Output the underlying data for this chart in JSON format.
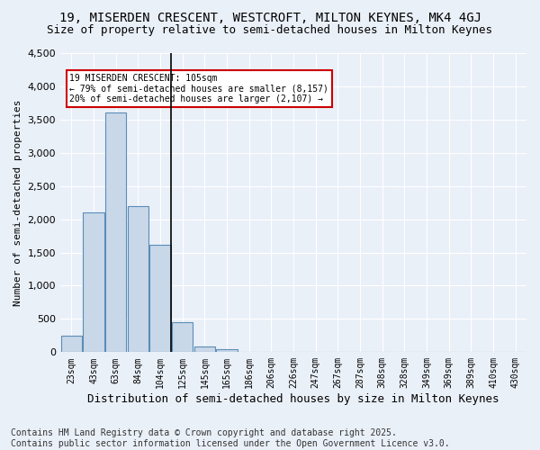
{
  "title1": "19, MISERDEN CRESCENT, WESTCROFT, MILTON KEYNES, MK4 4GJ",
  "title2": "Size of property relative to semi-detached houses in Milton Keynes",
  "xlabel": "Distribution of semi-detached houses by size in Milton Keynes",
  "ylabel": "Number of semi-detached properties",
  "footer": "Contains HM Land Registry data © Crown copyright and database right 2025.\nContains public sector information licensed under the Open Government Licence v3.0.",
  "bin_labels": [
    "23sqm",
    "43sqm",
    "63sqm",
    "84sqm",
    "104sqm",
    "125sqm",
    "145sqm",
    "165sqm",
    "186sqm",
    "206sqm",
    "226sqm",
    "247sqm",
    "267sqm",
    "287sqm",
    "308sqm",
    "328sqm",
    "349sqm",
    "369sqm",
    "389sqm",
    "410sqm",
    "430sqm"
  ],
  "bar_values": [
    250,
    2100,
    3600,
    2200,
    1620,
    450,
    80,
    50,
    0,
    0,
    0,
    0,
    0,
    0,
    0,
    0,
    0,
    0,
    0,
    0,
    0
  ],
  "bar_color": "#c8d8e8",
  "bar_edge_color": "#5b8db8",
  "annotation_text": "19 MISERDEN CRESCENT: 105sqm\n← 79% of semi-detached houses are smaller (8,157)\n20% of semi-detached houses are larger (2,107) →",
  "vline_x": 4.5,
  "ylim": [
    0,
    4500
  ],
  "yticks": [
    0,
    500,
    1000,
    1500,
    2000,
    2500,
    3000,
    3500,
    4000,
    4500
  ],
  "bg_color": "#eaf0f8",
  "grid_color": "#ffffff",
  "annotation_box_color": "#ffffff",
  "annotation_box_edge": "#cc0000",
  "vline_color": "#000000",
  "title1_fontsize": 10,
  "title2_fontsize": 9,
  "footer_fontsize": 7,
  "ylabel_fontsize": 8,
  "xlabel_fontsize": 9
}
